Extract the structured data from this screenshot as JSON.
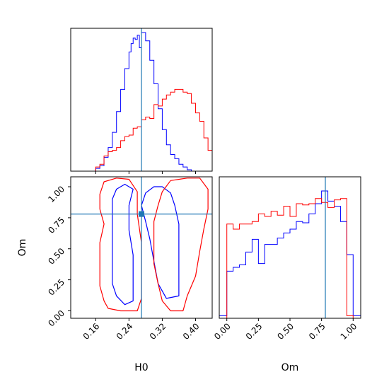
{
  "colors": {
    "blue": "#0000ff",
    "red": "#ff0000",
    "truth": "#1f77b4",
    "frame": "#000000"
  },
  "chart_data": [
    {
      "type": "histogram",
      "panel": "H0 marginal",
      "xlim": [
        0.1,
        0.44
      ],
      "truth": 0.27,
      "series": [
        {
          "color": "blue",
          "bins": [
            [
              0.15,
              0.0
            ],
            [
              0.16,
              0.02
            ],
            [
              0.17,
              0.04
            ],
            [
              0.18,
              0.1
            ],
            [
              0.19,
              0.17
            ],
            [
              0.2,
              0.28
            ],
            [
              0.21,
              0.43
            ],
            [
              0.22,
              0.59
            ],
            [
              0.23,
              0.74
            ],
            [
              0.24,
              0.86
            ],
            [
              0.245,
              0.92
            ],
            [
              0.25,
              0.96
            ],
            [
              0.255,
              0.95
            ],
            [
              0.26,
              0.98
            ],
            [
              0.265,
              0.89
            ],
            [
              0.27,
              1.0
            ],
            [
              0.28,
              0.94
            ],
            [
              0.29,
              0.8
            ],
            [
              0.3,
              0.63
            ],
            [
              0.31,
              0.45
            ],
            [
              0.32,
              0.3
            ],
            [
              0.33,
              0.19
            ],
            [
              0.34,
              0.12
            ],
            [
              0.35,
              0.09
            ],
            [
              0.36,
              0.05
            ],
            [
              0.37,
              0.03
            ],
            [
              0.38,
              0.01
            ],
            [
              0.39,
              0.0
            ]
          ]
        },
        {
          "color": "red",
          "bins": [
            [
              0.16,
              0.03
            ],
            [
              0.17,
              0.05
            ],
            [
              0.18,
              0.11
            ],
            [
              0.19,
              0.14
            ],
            [
              0.2,
              0.15
            ],
            [
              0.21,
              0.17
            ],
            [
              0.22,
              0.22
            ],
            [
              0.23,
              0.25
            ],
            [
              0.24,
              0.26
            ],
            [
              0.25,
              0.31
            ],
            [
              0.26,
              0.32
            ],
            [
              0.27,
              0.37
            ],
            [
              0.28,
              0.39
            ],
            [
              0.29,
              0.38
            ],
            [
              0.3,
              0.48
            ],
            [
              0.31,
              0.47
            ],
            [
              0.32,
              0.52
            ],
            [
              0.33,
              0.55
            ],
            [
              0.34,
              0.57
            ],
            [
              0.35,
              0.59
            ],
            [
              0.36,
              0.59
            ],
            [
              0.37,
              0.57
            ],
            [
              0.38,
              0.56
            ],
            [
              0.39,
              0.49
            ],
            [
              0.4,
              0.42
            ],
            [
              0.41,
              0.36
            ],
            [
              0.42,
              0.24
            ],
            [
              0.43,
              0.15
            ],
            [
              0.44,
              0.07
            ]
          ]
        }
      ]
    },
    {
      "type": "contour",
      "panel": "H0 vs Om",
      "xlabel": "H0",
      "ylabel": "Om",
      "xlim": [
        0.1,
        0.44
      ],
      "ylim": [
        -0.06,
        1.08
      ],
      "xticks": [
        "0.16",
        "0.24",
        "0.32",
        "0.40"
      ],
      "yticks": [
        "0.00",
        "0.25",
        "0.50",
        "0.75",
        "1.00"
      ],
      "truth": [
        0.27,
        0.78
      ],
      "series": [
        {
          "color": "blue",
          "contours": [
            [
              [
                0.23,
                1.02
              ],
              [
                0.21,
                0.98
              ],
              [
                0.2,
                0.9
              ],
              [
                0.2,
                0.8
              ],
              [
                0.2,
                0.65
              ],
              [
                0.2,
                0.5
              ],
              [
                0.2,
                0.35
              ],
              [
                0.2,
                0.22
              ],
              [
                0.21,
                0.12
              ],
              [
                0.23,
                0.05
              ],
              [
                0.25,
                0.08
              ],
              [
                0.25,
                0.25
              ],
              [
                0.25,
                0.45
              ],
              [
                0.24,
                0.65
              ],
              [
                0.24,
                0.85
              ],
              [
                0.25,
                0.98
              ],
              [
                0.23,
                1.02
              ]
            ],
            [
              [
                0.3,
                1.0
              ],
              [
                0.28,
                0.95
              ],
              [
                0.27,
                0.85
              ],
              [
                0.28,
                0.72
              ],
              [
                0.29,
                0.58
              ],
              [
                0.3,
                0.4
              ],
              [
                0.31,
                0.22
              ],
              [
                0.33,
                0.1
              ],
              [
                0.36,
                0.12
              ],
              [
                0.36,
                0.28
              ],
              [
                0.36,
                0.5
              ],
              [
                0.36,
                0.7
              ],
              [
                0.35,
                0.85
              ],
              [
                0.34,
                0.95
              ],
              [
                0.32,
                1.0
              ],
              [
                0.3,
                1.0
              ]
            ]
          ]
        },
        {
          "color": "red",
          "contours": [
            [
              [
                0.21,
                1.07
              ],
              [
                0.18,
                1.04
              ],
              [
                0.17,
                0.94
              ],
              [
                0.17,
                0.82
              ],
              [
                0.18,
                0.7
              ],
              [
                0.17,
                0.55
              ],
              [
                0.17,
                0.38
              ],
              [
                0.17,
                0.2
              ],
              [
                0.18,
                0.08
              ],
              [
                0.19,
                0.02
              ],
              [
                0.22,
                0.0
              ],
              [
                0.26,
                0.0
              ],
              [
                0.27,
                0.1
              ],
              [
                0.27,
                0.3
              ],
              [
                0.27,
                0.55
              ],
              [
                0.26,
                0.78
              ],
              [
                0.26,
                0.96
              ],
              [
                0.24,
                1.06
              ],
              [
                0.21,
                1.07
              ]
            ],
            [
              [
                0.38,
                1.07
              ],
              [
                0.34,
                1.05
              ],
              [
                0.32,
                0.96
              ],
              [
                0.31,
                0.85
              ],
              [
                0.3,
                0.72
              ],
              [
                0.3,
                0.55
              ],
              [
                0.3,
                0.38
              ],
              [
                0.31,
                0.22
              ],
              [
                0.32,
                0.08
              ],
              [
                0.34,
                0.0
              ],
              [
                0.37,
                0.0
              ],
              [
                0.38,
                0.12
              ],
              [
                0.4,
                0.28
              ],
              [
                0.41,
                0.48
              ],
              [
                0.42,
                0.66
              ],
              [
                0.43,
                0.82
              ],
              [
                0.43,
                0.98
              ],
              [
                0.41,
                1.07
              ],
              [
                0.38,
                1.07
              ]
            ]
          ]
        }
      ]
    },
    {
      "type": "histogram",
      "panel": "Om marginal",
      "xlabel": "Om",
      "xlim": [
        -0.06,
        1.06
      ],
      "xticks": [
        "0.00",
        "0.25",
        "0.50",
        "0.75",
        "1.00"
      ],
      "truth": 0.78,
      "series": [
        {
          "color": "blue",
          "bins": [
            [
              -0.06,
              0.02
            ],
            [
              0.0,
              0.37
            ],
            [
              0.05,
              0.4
            ],
            [
              0.1,
              0.42
            ],
            [
              0.15,
              0.52
            ],
            [
              0.2,
              0.62
            ],
            [
              0.25,
              0.43
            ],
            [
              0.3,
              0.58
            ],
            [
              0.35,
              0.58
            ],
            [
              0.4,
              0.63
            ],
            [
              0.45,
              0.67
            ],
            [
              0.5,
              0.7
            ],
            [
              0.55,
              0.76
            ],
            [
              0.6,
              0.75
            ],
            [
              0.65,
              0.82
            ],
            [
              0.7,
              0.9
            ],
            [
              0.75,
              1.0
            ],
            [
              0.8,
              0.92
            ],
            [
              0.85,
              0.88
            ],
            [
              0.9,
              0.76
            ],
            [
              0.95,
              0.5
            ],
            [
              1.0,
              0.02
            ]
          ]
        },
        {
          "color": "red",
          "bins": [
            [
              0.0,
              0.74
            ],
            [
              0.05,
              0.7
            ],
            [
              0.1,
              0.74
            ],
            [
              0.15,
              0.74
            ],
            [
              0.2,
              0.76
            ],
            [
              0.25,
              0.82
            ],
            [
              0.3,
              0.8
            ],
            [
              0.35,
              0.84
            ],
            [
              0.4,
              0.81
            ],
            [
              0.45,
              0.88
            ],
            [
              0.5,
              0.8
            ],
            [
              0.55,
              0.9
            ],
            [
              0.6,
              0.89
            ],
            [
              0.65,
              0.9
            ],
            [
              0.7,
              0.94
            ],
            [
              0.75,
              0.91
            ],
            [
              0.8,
              0.87
            ],
            [
              0.85,
              0.93
            ],
            [
              0.9,
              0.94
            ],
            [
              0.95,
              0.02
            ]
          ]
        }
      ]
    }
  ]
}
